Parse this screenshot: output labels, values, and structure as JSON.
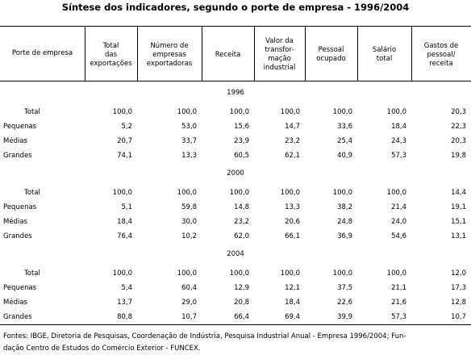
{
  "title": "Síntese dos indicadores, segundo o porte de empresa - 1996/2004",
  "table": {
    "header": [
      [
        "Porte de empresa"
      ],
      [
        "Total",
        "das",
        "exportações"
      ],
      [
        "Número de",
        "empresas",
        "exportadoras"
      ],
      [
        "Receita"
      ],
      [
        "Valor da",
        "transfor-",
        "mação",
        "industrial"
      ],
      [
        "Pessoal",
        "ocupado"
      ],
      [
        "Salário",
        "total"
      ],
      [
        "Gastos de",
        "pessoal/",
        "receita"
      ]
    ],
    "groups": [
      {
        "year": "1996",
        "rows": [
          [
            "Total",
            "100,0",
            "100,0",
            "100,0",
            "100,0",
            "100,0",
            "100,0",
            "20,3"
          ],
          [
            "Pequenas",
            "5,2",
            "53,0",
            "15,6",
            "14,7",
            "33,6",
            "18,4",
            "22,3"
          ],
          [
            "Médias",
            "20,7",
            "33,7",
            "23,9",
            "23,2",
            "25,4",
            "24,3",
            "20,3"
          ],
          [
            "Grandes",
            "74,1",
            "13,3",
            "60,5",
            "62,1",
            "40,9",
            "57,3",
            "19,8"
          ]
        ]
      },
      {
        "year": "2000",
        "rows": [
          [
            "Total",
            "100,0",
            "100,0",
            "100,0",
            "100,0",
            "100,0",
            "100,0",
            "14,4"
          ],
          [
            "Pequenas",
            "5,1",
            "59,8",
            "14,8",
            "13,3",
            "38,2",
            "21,4",
            "19,1"
          ],
          [
            "Médias",
            "18,4",
            "30,0",
            "23,2",
            "20,6",
            "24,8",
            "24,0",
            "15,1"
          ],
          [
            "Grandes",
            "76,4",
            "10,2",
            "62,0",
            "66,1",
            "36,9",
            "54,6",
            "13,1"
          ]
        ]
      },
      {
        "year": "2004",
        "rows": [
          [
            "Total",
            "100,0",
            "100,0",
            "100,0",
            "100,0",
            "100,0",
            "100,0",
            "12,0"
          ],
          [
            "Pequenas",
            "5,4",
            "60,4",
            "12,9",
            "12,1",
            "37,5",
            "21,1",
            "17,3"
          ],
          [
            "Médias",
            "13,7",
            "29,0",
            "20,8",
            "18,4",
            "22,6",
            "21,6",
            "12,8"
          ],
          [
            "Grandes",
            "80,8",
            "10,7",
            "66,4",
            "69,4",
            "39,9",
            "57,3",
            "10,7"
          ]
        ]
      }
    ]
  },
  "footer": [
    "Fontes: IBGE, Diretoria de Pesquisas, Coordenação de Indústria, Pesquisa Industrial Anual - Empresa 1996/2004; Fun-",
    "dação Centro de Estudos do Comércio Exterior - FUNCEX."
  ]
}
